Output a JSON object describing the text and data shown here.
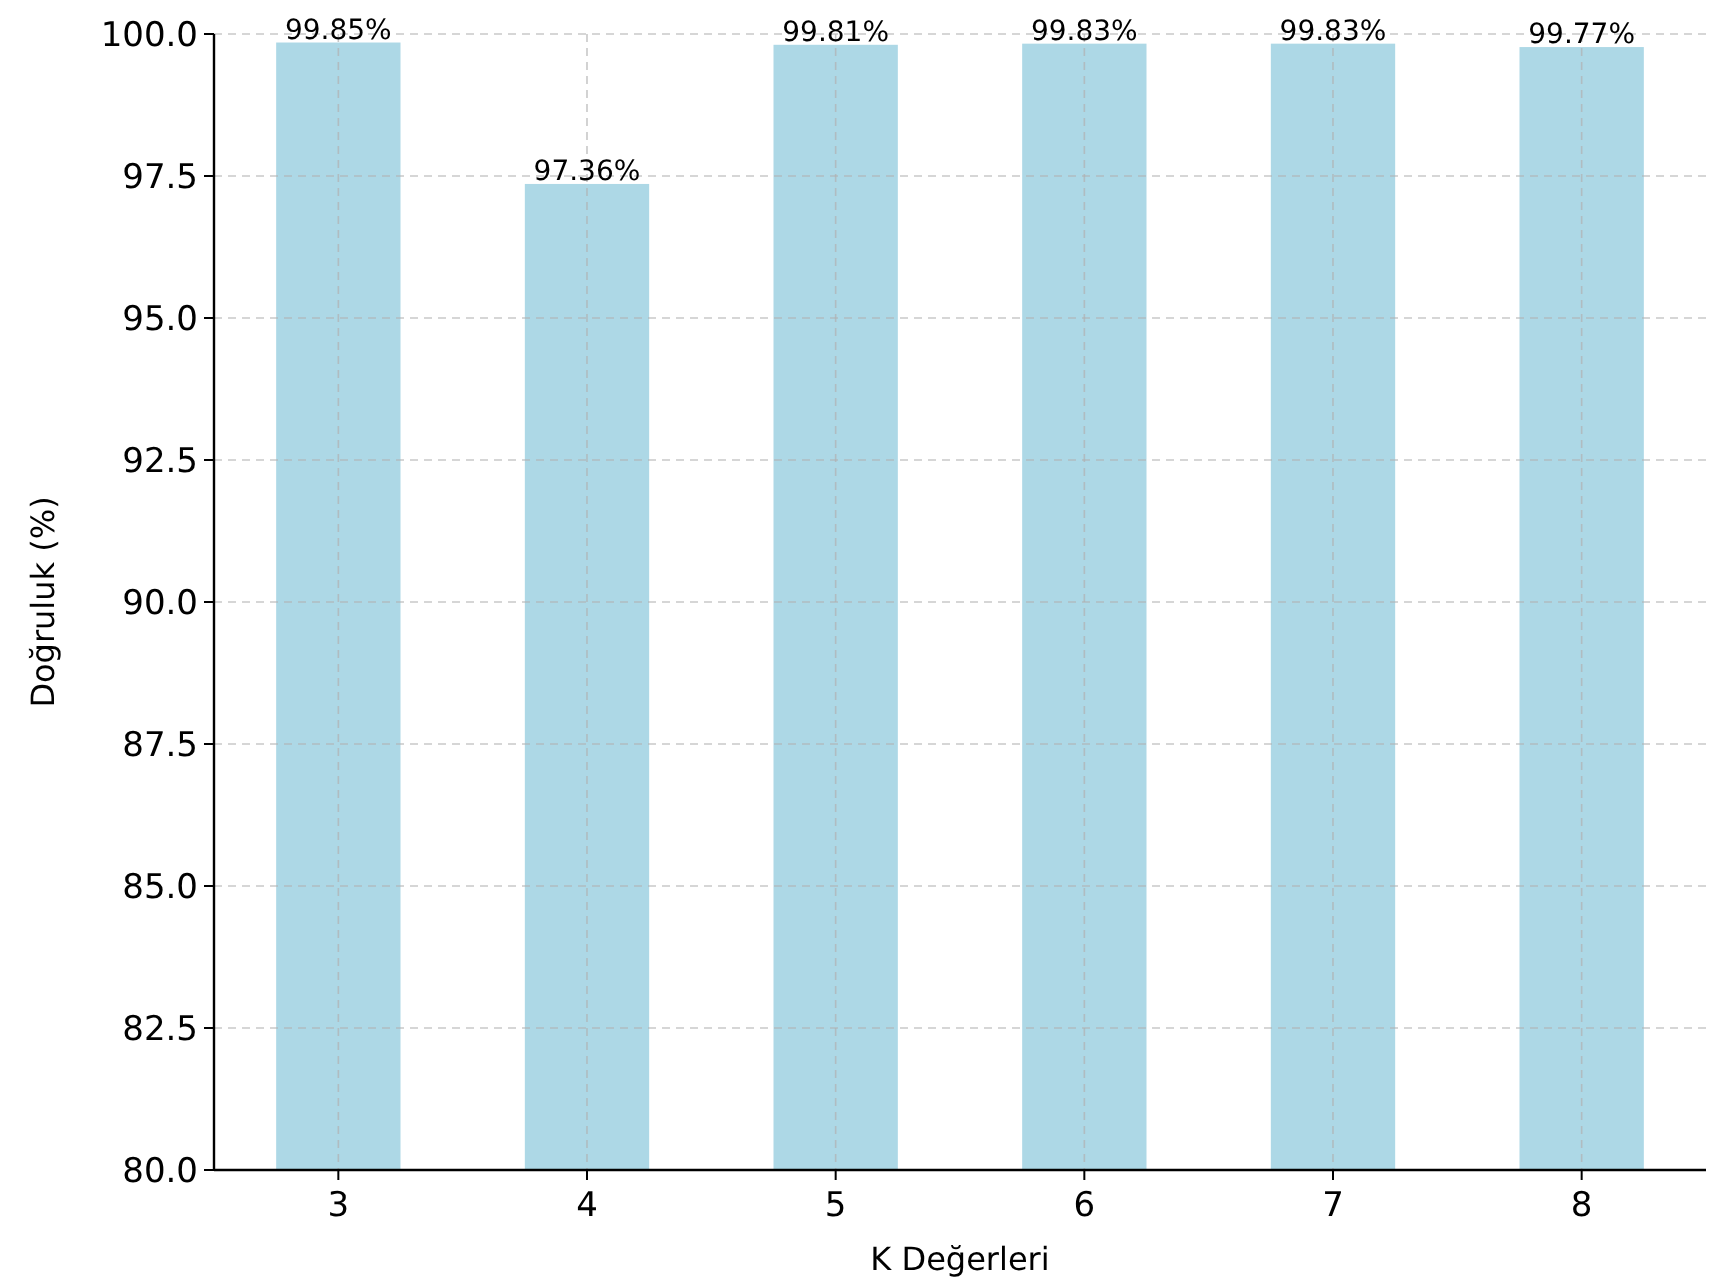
{
  "chart_data": {
    "type": "bar",
    "xlabel": "K Değerleri",
    "ylabel": "Doğruluk (%)",
    "categories": [
      "3",
      "4",
      "5",
      "6",
      "7",
      "8"
    ],
    "values": [
      99.85,
      97.36,
      99.81,
      99.83,
      99.83,
      99.77
    ],
    "value_labels": [
      "99.85%",
      "97.36%",
      "99.81%",
      "99.83%",
      "99.83%",
      "99.77%"
    ],
    "color": "#add8e6",
    "ylim": [
      80,
      100
    ],
    "yticks": [
      {
        "value": 80,
        "label": "80.0"
      },
      {
        "value": 82.5,
        "label": "82.5"
      },
      {
        "value": 85,
        "label": "85.0"
      },
      {
        "value": 87.5,
        "label": "87.5"
      },
      {
        "value": 90,
        "label": "90.0"
      },
      {
        "value": 92.5,
        "label": "92.5"
      },
      {
        "value": 95,
        "label": "95.0"
      },
      {
        "value": 97.5,
        "label": "97.5"
      },
      {
        "value": 100,
        "label": "100.0"
      }
    ],
    "grid": true
  }
}
